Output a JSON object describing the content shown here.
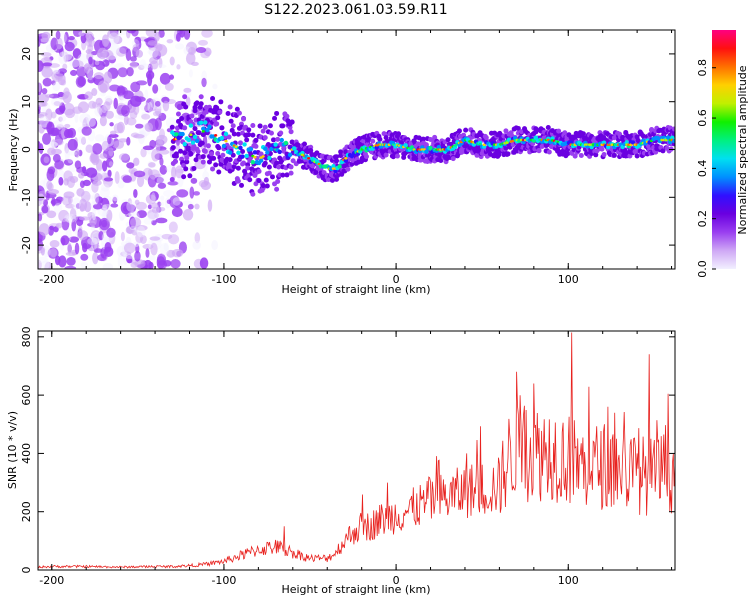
{
  "figure_title": "S122.2023.061.03.59.R11",
  "chart_data": [
    {
      "type": "heatmap",
      "title": "",
      "xlabel": "Height of straight line (km)",
      "ylabel": "Frequency (Hz)",
      "xlim": [
        -208,
        162
      ],
      "ylim": [
        -25,
        25
      ],
      "x_ticks": [
        -200,
        -100,
        0,
        100
      ],
      "y_ticks": [
        20,
        10,
        0,
        -10,
        -20
      ],
      "colorbar": {
        "label": "Normalized spectral amplitude",
        "range": [
          0.0,
          0.95
        ],
        "ticks": [
          0.0,
          0.2,
          0.4,
          0.6,
          0.8
        ],
        "colormap": [
          "#f2f0ff",
          "#cfa8f5",
          "#9a3ff0",
          "#6a00e0",
          "#3010ff",
          "#0090ff",
          "#00e0f0",
          "#00f080",
          "#10f000",
          "#c0f000",
          "#ffd000",
          "#ff7000",
          "#ff1010",
          "#ff0080"
        ]
      },
      "ridge_frequency_hz": {
        "x": [
          -130,
          -120,
          -110,
          -100,
          -90,
          -80,
          -70,
          -60,
          -50,
          -40,
          -35,
          -30,
          -25,
          -20,
          -10,
          0,
          10,
          20,
          30,
          40,
          50,
          60,
          70,
          80,
          90,
          100,
          110,
          120,
          130,
          140,
          150,
          160
        ],
        "y": [
          2,
          3,
          4,
          2,
          0,
          -2,
          0,
          0,
          -2,
          -4,
          -4,
          -2,
          -1,
          0,
          1,
          1,
          0,
          0,
          0,
          2,
          1,
          1,
          2,
          2,
          2,
          1,
          1,
          1,
          1,
          1,
          2,
          2
        ]
      },
      "noise_region_x": [
        -208,
        -105
      ],
      "grid": false
    },
    {
      "type": "line",
      "title": "",
      "xlabel": "Height of straight line (km)",
      "ylabel": "SNR (10 * v/v)",
      "xlim": [
        -208,
        162
      ],
      "ylim": [
        0,
        820
      ],
      "x_ticks": [
        -200,
        -100,
        0,
        100
      ],
      "y_ticks": [
        0,
        200,
        400,
        600,
        800
      ],
      "line_color": "#e8221f",
      "grid": false,
      "series": [
        {
          "x": [
            -208,
            -200,
            -180,
            -160,
            -140,
            -130,
            -120,
            -110,
            -100,
            -90,
            -80,
            -70,
            -60,
            -50,
            -40,
            -35,
            -30,
            -25,
            -20,
            -15,
            -10,
            -5,
            0,
            5,
            10,
            20,
            30,
            40,
            50,
            55,
            60,
            65,
            70,
            80,
            90,
            100,
            110,
            120,
            130,
            140,
            150,
            155,
            160,
            162
          ],
          "values": [
            10,
            12,
            12,
            10,
            12,
            12,
            15,
            20,
            30,
            50,
            70,
            80,
            60,
            40,
            40,
            60,
            100,
            130,
            150,
            150,
            170,
            180,
            190,
            200,
            210,
            240,
            250,
            270,
            280,
            280,
            290,
            380,
            400,
            400,
            410,
            380,
            350,
            360,
            350,
            330,
            320,
            340,
            330,
            350
          ],
          "peaks": [
            {
              "x": -65,
              "y": 150
            },
            {
              "x": -5,
              "y": 300
            },
            {
              "x": 41,
              "y": 400
            },
            {
              "x": 70,
              "y": 680
            },
            {
              "x": 80,
              "y": 640
            },
            {
              "x": 102,
              "y": 815
            },
            {
              "x": 147,
              "y": 740
            },
            {
              "x": 158,
              "y": 605
            }
          ]
        }
      ]
    }
  ]
}
